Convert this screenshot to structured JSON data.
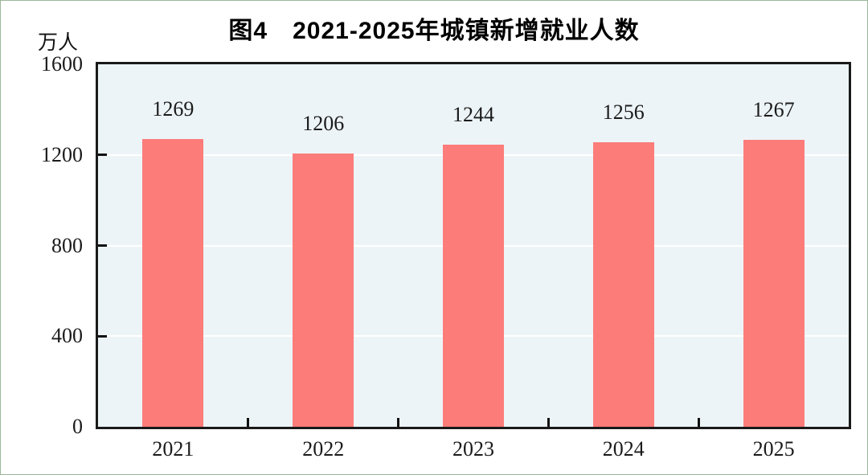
{
  "chart_data": {
    "type": "bar",
    "title": "图4　2021-2025年城镇新增就业人数",
    "unit_label": "万人",
    "categories": [
      "2021",
      "2022",
      "2023",
      "2024",
      "2025"
    ],
    "values": [
      1269,
      1206,
      1244,
      1256,
      1267
    ],
    "xlabel": "",
    "ylabel": "万人",
    "ylim": [
      0,
      1600
    ],
    "yticks": [
      0,
      400,
      800,
      1200,
      1600
    ],
    "grid": "horizontal",
    "legend": "none",
    "colors": {
      "bar": "#fc7c7a",
      "plot_background": "#edf4f7",
      "gridline": "#ffffff",
      "axis_border": "#1a1a1a",
      "text": "#1b1b1b",
      "title": "#000000"
    }
  }
}
